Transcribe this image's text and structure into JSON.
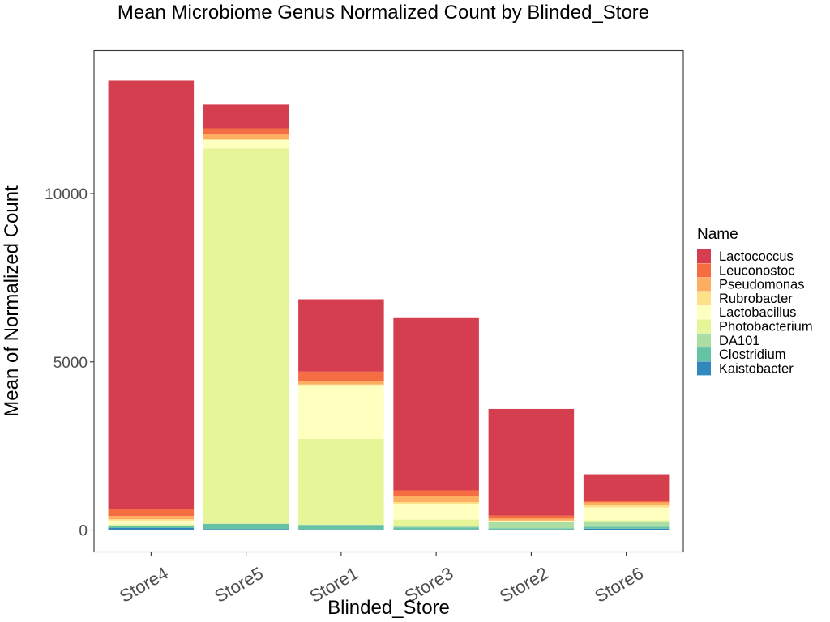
{
  "chart_data": {
    "type": "bar",
    "stacked": true,
    "title": "Mean Microbiome Genus Normalized Count by Blinded_Store",
    "xlabel": "Blinded_Store",
    "ylabel": "Mean of Normalized Count",
    "categories": [
      "Store4",
      "Store5",
      "Store1",
      "Store3",
      "Store2",
      "Store6"
    ],
    "yticks": [
      0,
      5000,
      10000
    ],
    "ytick_labels": [
      "0",
      "5000",
      "10000"
    ],
    "ylim": [
      -650,
      14250
    ],
    "grid": false,
    "legend_title": "Name",
    "legend_position": "right",
    "series": [
      {
        "name": "Kaistobacter",
        "color": "#3288BD",
        "values": [
          60,
          30,
          20,
          20,
          20,
          40
        ]
      },
      {
        "name": "Clostridium",
        "color": "#66C2A5",
        "values": [
          50,
          150,
          130,
          60,
          30,
          60
        ]
      },
      {
        "name": "DA101",
        "color": "#ABDDA4",
        "values": [
          30,
          10,
          10,
          40,
          180,
          160
        ]
      },
      {
        "name": "Photobacterium",
        "color": "#E6F598",
        "values": [
          30,
          11150,
          2550,
          190,
          10,
          30
        ]
      },
      {
        "name": "Lactobacillus",
        "color": "#FFFFBF",
        "values": [
          110,
          250,
          1600,
          470,
          30,
          380
        ]
      },
      {
        "name": "Rubrobacter",
        "color": "#FEE08B",
        "values": [
          40,
          20,
          20,
          50,
          10,
          70
        ]
      },
      {
        "name": "Pseudomonas",
        "color": "#FDAE61",
        "values": [
          100,
          150,
          100,
          170,
          60,
          80
        ]
      },
      {
        "name": "Leuconostoc",
        "color": "#F46D43",
        "values": [
          210,
          180,
          280,
          180,
          90,
          50
        ]
      },
      {
        "name": "Lactococcus",
        "color": "#D53E4F",
        "values": [
          12730,
          700,
          2150,
          5120,
          3170,
          790
        ]
      }
    ],
    "legend_order": [
      "Lactococcus",
      "Leuconostoc",
      "Pseudomonas",
      "Rubrobacter",
      "Lactobacillus",
      "Photobacterium",
      "DA101",
      "Clostridium",
      "Kaistobacter"
    ]
  }
}
